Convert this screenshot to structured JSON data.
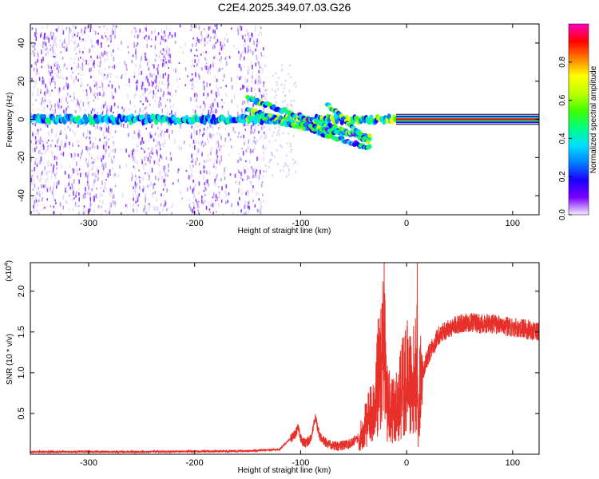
{
  "title": "C2E4.2025.349.07.03.G26",
  "chart_data": [
    {
      "type": "heatmap",
      "xlabel": "Height of straight line (km)",
      "ylabel": "Frequency (Hz)",
      "xlim": [
        -355,
        125
      ],
      "ylim": [
        -50,
        50
      ],
      "xticks": [
        -300,
        -200,
        -100,
        0,
        100
      ],
      "yticks": [
        -40,
        -20,
        0,
        20,
        40
      ],
      "colorbar": {
        "label": "Normalized spectral amplitude",
        "range": [
          0,
          1
        ],
        "ticks": [
          "0.0",
          "0.2",
          "0.4",
          "0.6",
          "0.8"
        ],
        "colors": [
          "#f4eefe",
          "#7a00ff",
          "#1a00ff",
          "#0080ff",
          "#00e0ff",
          "#00ff80",
          "#40ff00",
          "#c0ff00",
          "#ffff00",
          "#ff8000",
          "#ff0000",
          "#ff00c0"
        ]
      },
      "features": [
        {
          "name": "carrier",
          "x_range": [
            -355,
            125
          ],
          "frequency": 0
        },
        {
          "name": "descending-trace",
          "x_range": [
            -150,
            -35
          ],
          "frequency_start": 5,
          "frequency_end": -15
        }
      ]
    },
    {
      "type": "line",
      "xlabel": "Height of straight line (km)",
      "ylabel": "SNR (10 * v/v)",
      "yscale_label": "(x10^4)",
      "xlim": [
        -355,
        125
      ],
      "ylim": [
        0,
        2.35
      ],
      "xticks": [
        -300,
        -200,
        -100,
        0,
        100
      ],
      "yticks": [
        0.5,
        1.0,
        1.5,
        2.0
      ],
      "ytick_labels": [
        "0.5",
        "1.0",
        "1.5",
        "2.0"
      ],
      "color": "#e8302a",
      "x": [
        -355,
        -300,
        -250,
        -200,
        -150,
        -120,
        -105,
        -102,
        -99,
        -95,
        -90,
        -86,
        -82,
        -75,
        -65,
        -55,
        -45,
        -40,
        -35,
        -30,
        -27,
        -25,
        -22,
        -21,
        -20,
        -18,
        -15,
        -10,
        -5,
        0,
        5,
        9,
        10,
        11,
        12,
        15,
        20,
        30,
        40,
        50,
        60,
        70,
        80,
        90,
        100,
        110,
        120,
        125
      ],
      "y": [
        0.03,
        0.03,
        0.03,
        0.035,
        0.04,
        0.06,
        0.25,
        0.33,
        0.15,
        0.14,
        0.2,
        0.45,
        0.22,
        0.12,
        0.1,
        0.12,
        0.2,
        0.35,
        0.5,
        0.6,
        1.1,
        1.2,
        1.5,
        2.35,
        0.9,
        0.7,
        0.6,
        0.6,
        0.9,
        1.1,
        1.0,
        1.2,
        1.9,
        0.1,
        0.9,
        1.0,
        1.2,
        1.45,
        1.55,
        1.6,
        1.62,
        1.6,
        1.6,
        1.58,
        1.55,
        1.55,
        1.5,
        1.5
      ]
    }
  ]
}
